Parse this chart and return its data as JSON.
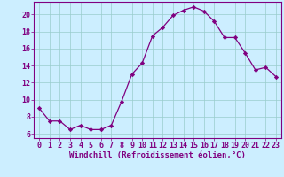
{
  "x": [
    0,
    1,
    2,
    3,
    4,
    5,
    6,
    7,
    8,
    9,
    10,
    11,
    12,
    13,
    14,
    15,
    16,
    17,
    18,
    19,
    20,
    21,
    22,
    23
  ],
  "y": [
    9.0,
    7.5,
    7.5,
    6.5,
    7.0,
    6.5,
    6.5,
    7.0,
    9.8,
    13.0,
    14.3,
    17.5,
    18.5,
    19.9,
    20.5,
    20.9,
    20.4,
    19.2,
    17.3,
    17.3,
    15.5,
    13.5,
    13.8,
    12.7
  ],
  "line_color": "#800080",
  "marker": "D",
  "marker_size": 2.2,
  "bg_color": "#cceeff",
  "grid_color": "#99cccc",
  "xlabel": "Windchill (Refroidissement éolien,°C)",
  "xlabel_fontsize": 6.5,
  "tick_fontsize": 6.0,
  "xlim": [
    -0.5,
    23.5
  ],
  "ylim": [
    5.5,
    21.5
  ],
  "yticks": [
    6,
    8,
    10,
    12,
    14,
    16,
    18,
    20
  ],
  "xticks": [
    0,
    1,
    2,
    3,
    4,
    5,
    6,
    7,
    8,
    9,
    10,
    11,
    12,
    13,
    14,
    15,
    16,
    17,
    18,
    19,
    20,
    21,
    22,
    23
  ],
  "spine_color": "#800080",
  "tick_color": "#800080",
  "label_color": "#800080"
}
